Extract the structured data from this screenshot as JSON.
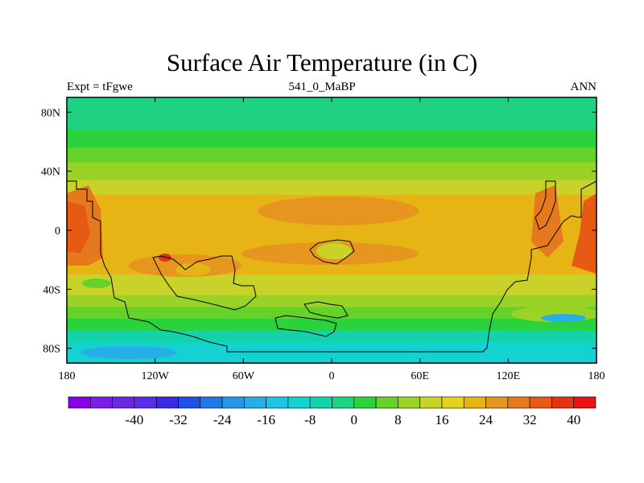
{
  "title": "Surface Air Temperature (in C)",
  "subtitle_left": "Expt = tFgwe",
  "subtitle_center": "541_0_MaBP",
  "subtitle_right": "ANN",
  "y_ticks": [
    {
      "label": "80N",
      "lat": 80
    },
    {
      "label": "40N",
      "lat": 40
    },
    {
      "label": "0",
      "lat": 0
    },
    {
      "label": "40S",
      "lat": -40
    },
    {
      "label": "80S",
      "lat": -80
    }
  ],
  "x_ticks": [
    {
      "label": "180",
      "lon": -180
    },
    {
      "label": "120W",
      "lon": -120
    },
    {
      "label": "60W",
      "lon": -60
    },
    {
      "label": "0",
      "lon": 0
    },
    {
      "label": "60E",
      "lon": 60
    },
    {
      "label": "120E",
      "lon": 120
    },
    {
      "label": "180",
      "lon": 180
    }
  ],
  "colorbar": {
    "colors": [
      "#8a00e6",
      "#7a1ee6",
      "#6a28e0",
      "#5a2ee8",
      "#3a2ae0",
      "#1e50e6",
      "#1e78e6",
      "#2896e6",
      "#28aee6",
      "#1ec4e6",
      "#14d2d2",
      "#14d2aa",
      "#1ed282",
      "#2ad23c",
      "#64d228",
      "#9bd228",
      "#c8d228",
      "#e6d21e",
      "#e6b414",
      "#e6961e",
      "#e6781e",
      "#e65a14",
      "#e63214",
      "#e61414"
    ],
    "labels": [
      {
        "text": "-40",
        "boundary": 3
      },
      {
        "text": "-32",
        "boundary": 5
      },
      {
        "text": "-24",
        "boundary": 7
      },
      {
        "text": "-16",
        "boundary": 9
      },
      {
        "text": "-8",
        "boundary": 11
      },
      {
        "text": "0",
        "boundary": 13
      },
      {
        "text": "8",
        "boundary": 15
      },
      {
        "text": "16",
        "boundary": 17
      },
      {
        "text": "24",
        "boundary": 19
      },
      {
        "text": "32",
        "boundary": 21
      },
      {
        "text": "40",
        "boundary": 23
      }
    ]
  },
  "field_bands": [
    {
      "lat_top": 90,
      "lat_bottom": 68,
      "color": "#1ed282"
    },
    {
      "lat_top": 68,
      "lat_bottom": 56,
      "color": "#2ad23c"
    },
    {
      "lat_top": 56,
      "lat_bottom": 46,
      "color": "#64d228"
    },
    {
      "lat_top": 46,
      "lat_bottom": 34,
      "color": "#9bd228"
    },
    {
      "lat_top": 34,
      "lat_bottom": 24,
      "color": "#c8d228"
    },
    {
      "lat_top": 24,
      "lat_bottom": -30,
      "color": "#e6b414"
    },
    {
      "lat_top": -30,
      "lat_bottom": -44,
      "color": "#c8d228"
    },
    {
      "lat_top": -44,
      "lat_bottom": -52,
      "color": "#9bd228"
    },
    {
      "lat_top": -52,
      "lat_bottom": -60,
      "color": "#64d228"
    },
    {
      "lat_top": -60,
      "lat_bottom": -68,
      "color": "#2ad23c"
    },
    {
      "lat_top": -68,
      "lat_bottom": -76,
      "color": "#14d2aa"
    },
    {
      "lat_top": -76,
      "lat_bottom": -90,
      "color": "#14d2d2"
    }
  ]
}
